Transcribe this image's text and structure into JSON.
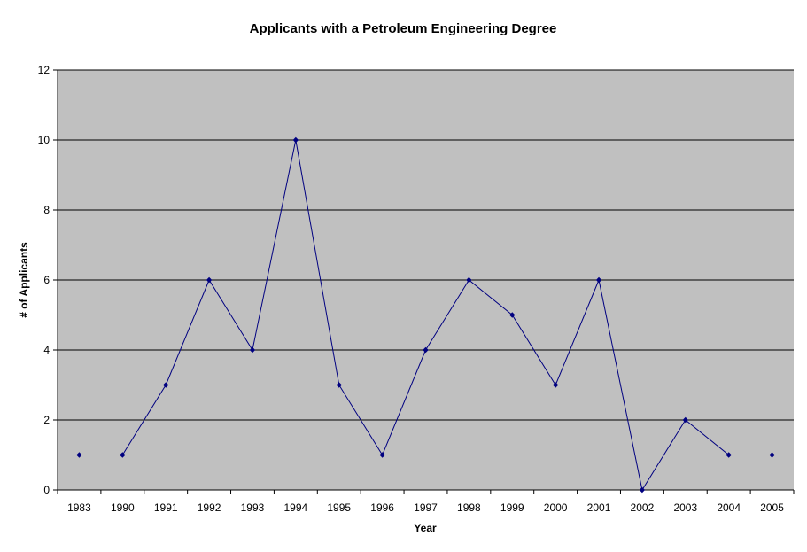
{
  "chart_data": {
    "type": "line",
    "title": "Applicants with a Petroleum Engineering Degree",
    "xlabel": "Year",
    "ylabel": "# of Applicants",
    "categories": [
      "1983",
      "1990",
      "1991",
      "1992",
      "1993",
      "1994",
      "1995",
      "1996",
      "1997",
      "1998",
      "1999",
      "2000",
      "2001",
      "2002",
      "2003",
      "2004",
      "2005"
    ],
    "values": [
      1,
      1,
      3,
      6,
      4,
      10,
      3,
      1,
      4,
      6,
      5,
      3,
      6,
      0,
      2,
      1,
      1
    ],
    "ylim": [
      0,
      12
    ],
    "yticks": [
      0,
      2,
      4,
      6,
      8,
      10,
      12
    ],
    "grid": true,
    "legend": "none",
    "colors": {
      "plot_background": "#c0c0c0",
      "line": "#000080",
      "marker": "#000080",
      "gridline": "#000000",
      "axis": "#000000"
    }
  }
}
